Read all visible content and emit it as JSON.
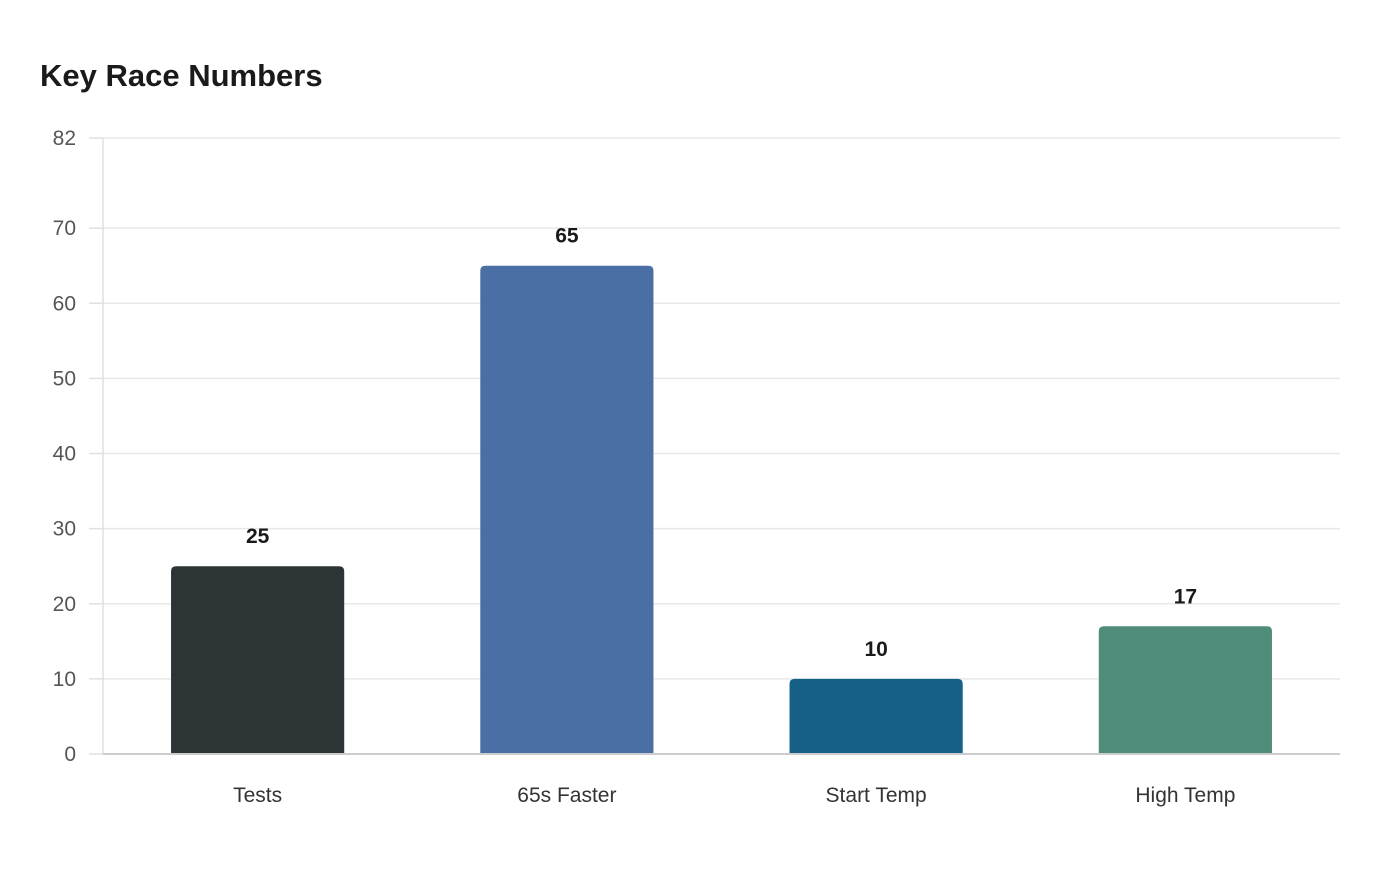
{
  "chart_data": {
    "type": "bar",
    "title": "Key Race Numbers",
    "categories": [
      "Tests",
      "65s Faster",
      "Start Temp",
      "High Temp"
    ],
    "values": [
      25,
      65,
      10,
      17
    ],
    "colors": [
      "#2d3436",
      "#4a6fa5",
      "#166088",
      "#4f8c7a"
    ],
    "xlabel": "",
    "ylabel": "",
    "ylim": [
      0,
      82
    ],
    "yticks": [
      0,
      10,
      20,
      30,
      40,
      50,
      60,
      70,
      82
    ],
    "grid": true,
    "legend": "none"
  }
}
